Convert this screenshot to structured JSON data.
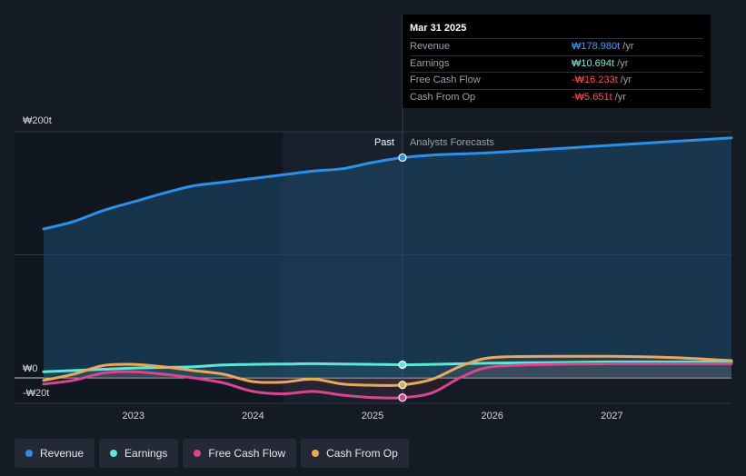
{
  "tooltip": {
    "date": "Mar 31 2025",
    "rows": [
      {
        "label": "Revenue",
        "value": "₩178.980t",
        "unit": " /yr",
        "color": "#3aa0ff"
      },
      {
        "label": "Earnings",
        "value": "₩10.694t",
        "unit": " /yr",
        "color": "#7ae8e0"
      },
      {
        "label": "Free Cash Flow",
        "value": "-₩16.233t",
        "unit": " /yr",
        "color": "#ff4d4d"
      },
      {
        "label": "Cash From Op",
        "value": "-₩5.651t",
        "unit": " /yr",
        "color": "#ff4d4d"
      }
    ]
  },
  "labels": {
    "past": "Past",
    "forecast": "Analysts Forecasts"
  },
  "legend": [
    {
      "label": "Revenue",
      "color": "#2d8fe6"
    },
    {
      "label": "Earnings",
      "color": "#5ee6d6"
    },
    {
      "label": "Free Cash Flow",
      "color": "#d6478f"
    },
    {
      "label": "Cash From Op",
      "color": "#e8a95a"
    }
  ],
  "chart_data": {
    "type": "line",
    "x_ticks": [
      2023,
      2024,
      2025,
      2026,
      2027
    ],
    "y_ticks": [
      {
        "value": 200,
        "label": "₩200t"
      },
      {
        "value": 0,
        "label": "₩0"
      },
      {
        "value": -20,
        "label": "-₩20t"
      }
    ],
    "xlim": [
      2022.25,
      2028.0
    ],
    "ylim": [
      -20,
      200
    ],
    "past_end": 2025.25,
    "highlight_start": 2024.25,
    "series": [
      {
        "name": "Revenue",
        "color": "#2d8fe6",
        "fill": true,
        "x": [
          2022.25,
          2022.5,
          2022.75,
          2023.0,
          2023.25,
          2023.5,
          2023.75,
          2024.0,
          2024.25,
          2024.5,
          2024.75,
          2025.0,
          2025.25,
          2025.5,
          2026.0,
          2026.5,
          2027.0,
          2027.5,
          2028.0
        ],
        "y": [
          121,
          127,
          136,
          143,
          150,
          156,
          159,
          162,
          165,
          168,
          170,
          175,
          179,
          181,
          183,
          186,
          189,
          192,
          195
        ]
      },
      {
        "name": "Earnings",
        "color": "#5ee6d6",
        "fill": false,
        "x": [
          2022.25,
          2022.5,
          2022.75,
          2023.0,
          2023.25,
          2023.5,
          2023.75,
          2024.0,
          2024.25,
          2024.5,
          2024.75,
          2025.0,
          2025.25,
          2025.5,
          2026.0,
          2026.5,
          2027.0,
          2027.5,
          2028.0
        ],
        "y": [
          5,
          6,
          7,
          8,
          8.5,
          9,
          10.5,
          11,
          11.2,
          11.5,
          11.3,
          11,
          10.7,
          11,
          12,
          12.5,
          13,
          13,
          13
        ]
      },
      {
        "name": "Free Cash Flow",
        "color": "#d6478f",
        "fill": false,
        "x": [
          2022.25,
          2022.5,
          2022.75,
          2023.0,
          2023.25,
          2023.5,
          2023.75,
          2024.0,
          2024.25,
          2024.5,
          2024.75,
          2025.0,
          2025.25,
          2025.5,
          2025.75,
          2026.0,
          2026.5,
          2027.0,
          2027.5,
          2028.0
        ],
        "y": [
          -5,
          -2,
          4,
          5,
          3,
          0,
          -4,
          -11,
          -13,
          -11,
          -14,
          -16,
          -16,
          -12,
          1,
          9,
          11,
          11.5,
          11.5,
          11.5
        ]
      },
      {
        "name": "Cash From Op",
        "color": "#e8a95a",
        "fill": false,
        "x": [
          2022.25,
          2022.5,
          2022.75,
          2023.0,
          2023.25,
          2023.5,
          2023.75,
          2024.0,
          2024.25,
          2024.5,
          2024.75,
          2025.0,
          2025.25,
          2025.5,
          2025.75,
          2026.0,
          2026.5,
          2027.0,
          2027.5,
          2028.0
        ],
        "y": [
          -2,
          3,
          10,
          11,
          9,
          6,
          3,
          -3,
          -3.5,
          -1,
          -5,
          -6,
          -5.7,
          -1,
          10,
          16.5,
          17.5,
          17.5,
          16.5,
          14
        ]
      }
    ]
  }
}
